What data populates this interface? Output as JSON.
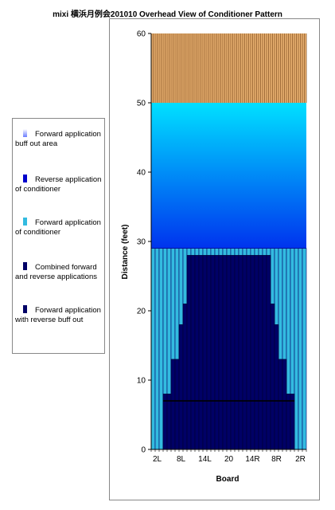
{
  "chart_data": {
    "type": "bar",
    "title": "mixi 横浜月例会201010 Overhead View of Conditioner Pattern",
    "xlabel": "Board",
    "ylabel": "Distance (feet)",
    "ylim": [
      0,
      60
    ],
    "yticks": [
      "0",
      "10",
      "20",
      "30",
      "40",
      "50",
      "60"
    ],
    "x_tick_labels": [
      "2L",
      "8L",
      "14L",
      "20",
      "14R",
      "8R",
      "2R"
    ],
    "board_count": 39,
    "forward_conditioner_lengths": [
      29,
      29,
      29,
      29,
      29,
      29,
      29,
      29,
      29,
      29,
      29,
      29,
      29,
      29,
      29,
      29,
      29,
      29,
      29,
      29,
      29,
      29,
      29,
      29,
      29,
      29,
      29,
      29,
      29,
      29,
      29,
      29,
      29,
      29,
      29,
      29,
      29,
      29,
      29
    ],
    "combined_lengths": [
      0,
      0,
      0,
      8,
      8,
      13,
      13,
      18,
      21,
      28,
      28,
      28,
      28,
      28,
      28,
      28,
      28,
      28,
      28,
      28,
      28,
      28,
      28,
      28,
      28,
      28,
      28,
      28,
      28,
      28,
      21,
      18,
      13,
      13,
      8,
      8,
      0,
      0,
      0
    ],
    "reverse_buff_out_line": 7,
    "forward_buff_out_range": [
      29,
      50
    ],
    "lane_end_range": [
      50,
      60
    ],
    "legend_position": "left",
    "series": [
      {
        "name": "Forward application buff out area",
        "color": "#1e8cff"
      },
      {
        "name": "Reverse application of conditioner",
        "color": "#0000cc"
      },
      {
        "name": "Forward application of conditioner",
        "color": "#33bbe0"
      },
      {
        "name": "Combined forward and reverse applications",
        "color": "#000066"
      },
      {
        "name": "Forward application with reverse buff out",
        "color": "#000066"
      }
    ],
    "colors": {
      "buff_gradient_top": "#00ddff",
      "buff_gradient_bottom": "#0033ee",
      "forward": "#33bbe0",
      "combined": "#000066",
      "lane_wood": "#e8b070",
      "lane_stripe": "#8c5a2a"
    }
  }
}
